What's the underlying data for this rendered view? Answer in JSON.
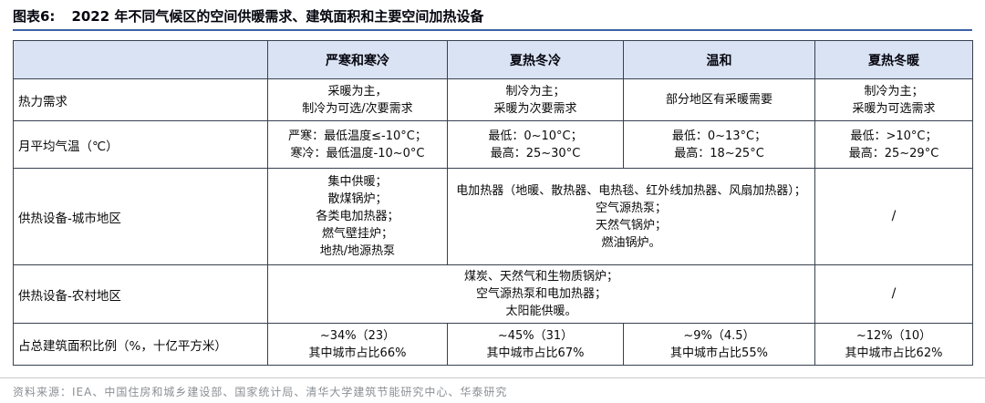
{
  "title": {
    "prefix": "图表6:",
    "text": "2022 年不同气候区的空间供暖需求、建筑面积和主要空间加热设备"
  },
  "colors": {
    "title_rule_blue": "#3c63a8",
    "header_fill": "#dae3f3",
    "table_border": "#38404f",
    "source_gray": "#8b9095"
  },
  "table": {
    "header": [
      "",
      "严寒和寒冷",
      "夏热冬冷",
      "温和",
      "夏热冬暖"
    ],
    "rows": [
      {
        "label": "热力需求",
        "cells": [
          {
            "lines": [
              "采暖为主，",
              "制冷为可选/次要需求"
            ]
          },
          {
            "lines": [
              "制冷为主；",
              "采暖为次要需求"
            ]
          },
          {
            "lines": [
              "部分地区有采暖需要"
            ]
          },
          {
            "lines": [
              "制冷为主；",
              "采暖为可选需求"
            ]
          }
        ]
      },
      {
        "label": "月平均气温（℃）",
        "cells": [
          {
            "lines": [
              "严寒：最低温度≤-10°C；",
              "寒冷：最低温度-10~0°C"
            ]
          },
          {
            "lines": [
              "最低：0~10°C；",
              "最高：25~30°C"
            ]
          },
          {
            "lines": [
              "最低：0~13°C；",
              "最高：18~25°C"
            ]
          },
          {
            "lines": [
              "最低：>10°C；",
              "最高：25~29°C"
            ]
          }
        ]
      },
      {
        "label": "供热设备-城市地区",
        "cells": [
          {
            "lines": [
              "集中供暖；",
              "散煤锅炉；",
              "各类电加热器；",
              "燃气壁挂炉；",
              "地热/地源热泵"
            ]
          },
          {
            "lines": [
              "电加热器（地暖、散热器、电热毯、红外线加热器、风扇加热器）；",
              "空气源热泵；",
              "天然气锅炉；",
              "燃油锅炉。"
            ]
          },
          {
            "lines": [
              "/"
            ]
          }
        ]
      },
      {
        "label": "供热设备-农村地区",
        "cells": [
          {
            "lines": [
              "煤炭、天然气和生物质锅炉；",
              "空气源热泵和电加热器；",
              "太阳能供暖。"
            ]
          },
          {
            "lines": [
              "/"
            ]
          }
        ]
      },
      {
        "label": "占总建筑面积比例（%，十亿平方米）",
        "cells": [
          {
            "lines": [
              "~34%（23）",
              "其中城市占比66%"
            ]
          },
          {
            "lines": [
              "~45%（31）",
              "其中城市占比67%"
            ]
          },
          {
            "lines": [
              "~9%（4.5）",
              "其中城市占比55%"
            ]
          },
          {
            "lines": [
              "~12%（10）",
              "其中城市占比62%"
            ]
          }
        ]
      }
    ]
  },
  "source": {
    "text": "资料来源：IEA、中国住房和城乡建设部、国家统计局、清华大学建筑节能研究中心、华泰研究"
  }
}
